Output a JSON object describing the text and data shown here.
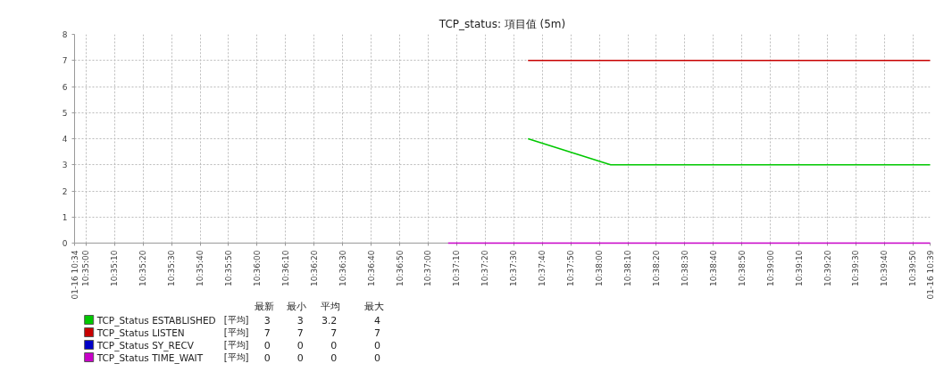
{
  "chart_data": {
    "type": "line",
    "title": "TCP_status: 項目值 (5m)",
    "xlim": [
      10.582222,
      10.665556
    ],
    "ylim": [
      0,
      8
    ],
    "yticks": [
      0,
      1,
      2,
      3,
      4,
      5,
      6,
      7,
      8
    ],
    "xticks": [
      {
        "value": 10.582222,
        "label": "01-16 10:34"
      },
      {
        "value": 10.583333,
        "label": "10:35:00"
      },
      {
        "value": 10.586111,
        "label": "10:35:10"
      },
      {
        "value": 10.588889,
        "label": "10:35:20"
      },
      {
        "value": 10.591667,
        "label": "10:35:30"
      },
      {
        "value": 10.594444,
        "label": "10:35:40"
      },
      {
        "value": 10.597222,
        "label": "10:35:50"
      },
      {
        "value": 10.6,
        "label": "10:36:00"
      },
      {
        "value": 10.602778,
        "label": "10:36:10"
      },
      {
        "value": 10.605556,
        "label": "10:36:20"
      },
      {
        "value": 10.608333,
        "label": "10:36:30"
      },
      {
        "value": 10.611111,
        "label": "10:36:40"
      },
      {
        "value": 10.613889,
        "label": "10:36:50"
      },
      {
        "value": 10.616667,
        "label": "10:37:00"
      },
      {
        "value": 10.619444,
        "label": "10:37:10"
      },
      {
        "value": 10.622222,
        "label": "10:37:20"
      },
      {
        "value": 10.625,
        "label": "10:37:30"
      },
      {
        "value": 10.627778,
        "label": "10:37:40"
      },
      {
        "value": 10.630556,
        "label": "10:37:50"
      },
      {
        "value": 10.633333,
        "label": "10:38:00"
      },
      {
        "value": 10.636111,
        "label": "10:38:10"
      },
      {
        "value": 10.638889,
        "label": "10:38:20"
      },
      {
        "value": 10.641667,
        "label": "10:38:30"
      },
      {
        "value": 10.644444,
        "label": "10:38:40"
      },
      {
        "value": 10.647222,
        "label": "10:38:50"
      },
      {
        "value": 10.65,
        "label": "10:39:00"
      },
      {
        "value": 10.652778,
        "label": "10:39:10"
      },
      {
        "value": 10.655556,
        "label": "10:39:20"
      },
      {
        "value": 10.658333,
        "label": "10:39:30"
      },
      {
        "value": 10.661111,
        "label": "10:39:40"
      },
      {
        "value": 10.663889,
        "label": "10:39:50"
      },
      {
        "value": 10.665556,
        "label": "01-16 10:39"
      }
    ],
    "grid": true,
    "legend": "bottom left",
    "series": [
      {
        "name": "TCP_Status ESTABLISHED",
        "color": "#00c800",
        "x": [
          10.626389,
          10.634444,
          10.665556
        ],
        "values": [
          4,
          3,
          3
        ]
      },
      {
        "name": "TCP_Status LISTEN",
        "color": "#c80000",
        "x": [
          10.626389,
          10.665556
        ],
        "values": [
          7,
          7
        ]
      },
      {
        "name": "TCP_Status SY_RECV",
        "color": "#0000c8"
      },
      {
        "name": "TCP_Status TIME_WAIT",
        "color": "#c800c8",
        "x": [
          10.618611,
          10.665556
        ],
        "values": [
          0,
          0
        ]
      }
    ],
    "annotations": [
      "最新",
      "最小",
      "平均",
      "最大",
      "[平均]",
      "3",
      "3",
      "3.2",
      "4",
      "[平均]",
      "7",
      "7",
      "7",
      "7",
      "[平均]",
      "0",
      "0",
      "0",
      "0",
      "[平均]",
      "0",
      "0",
      "0",
      "0"
    ]
  }
}
